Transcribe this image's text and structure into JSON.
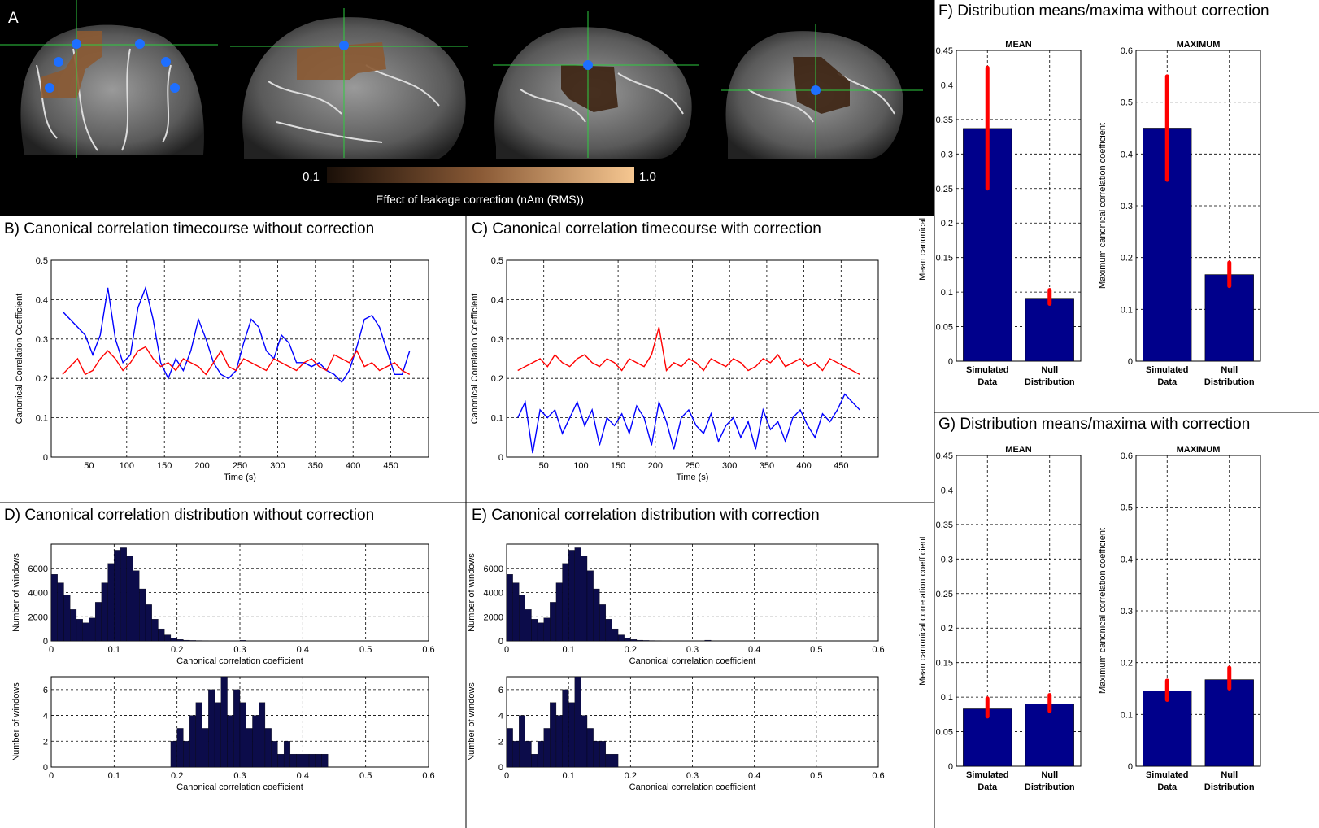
{
  "panelA": {
    "label": "A",
    "colorbar_min": "0.1",
    "colorbar_max": "1.0",
    "colorbar_label": "Effect of leakage correction (nAm (RMS))"
  },
  "colors": {
    "blue_line": "#0000ff",
    "red_line": "#ff0000",
    "bar_fill": "#00008b",
    "errorbar": "#ff0000",
    "hist_fill": "#0c0c4a"
  },
  "chart_data": [
    {
      "id": "B",
      "type": "line",
      "title": "B) Canonical correlation timecourse without correction",
      "xlabel": "Time (s)",
      "ylabel": "Canonical Correlation Coefficient",
      "xlim": [
        0,
        500
      ],
      "ylim": [
        0,
        0.5
      ],
      "xticks": [
        "50",
        "100",
        "150",
        "200",
        "250",
        "300",
        "350",
        "400",
        "450"
      ],
      "yticks": [
        "0",
        "0.1",
        "0.2",
        "0.3",
        "0.4",
        "0.5"
      ],
      "grid": true,
      "series": [
        {
          "color": "blue",
          "x": [
            15,
            25,
            35,
            45,
            55,
            65,
            75,
            85,
            95,
            105,
            115,
            125,
            135,
            145,
            155,
            165,
            175,
            185,
            195,
            205,
            215,
            225,
            235,
            245,
            255,
            265,
            275,
            285,
            295,
            305,
            315,
            325,
            335,
            345,
            355,
            365,
            375,
            385,
            395,
            405,
            415,
            425,
            435,
            445,
            455,
            465,
            475
          ],
          "y": [
            0.37,
            0.35,
            0.33,
            0.31,
            0.26,
            0.31,
            0.43,
            0.3,
            0.24,
            0.26,
            0.38,
            0.43,
            0.35,
            0.24,
            0.2,
            0.25,
            0.22,
            0.27,
            0.35,
            0.3,
            0.24,
            0.21,
            0.2,
            0.22,
            0.29,
            0.35,
            0.33,
            0.27,
            0.25,
            0.31,
            0.29,
            0.24,
            0.24,
            0.23,
            0.24,
            0.22,
            0.21,
            0.19,
            0.22,
            0.28,
            0.35,
            0.36,
            0.33,
            0.27,
            0.21,
            0.21,
            0.27
          ]
        },
        {
          "color": "red",
          "x": [
            15,
            25,
            35,
            45,
            55,
            65,
            75,
            85,
            95,
            105,
            115,
            125,
            135,
            145,
            155,
            165,
            175,
            185,
            195,
            205,
            215,
            225,
            235,
            245,
            255,
            265,
            275,
            285,
            295,
            305,
            315,
            325,
            335,
            345,
            355,
            365,
            375,
            385,
            395,
            405,
            415,
            425,
            435,
            445,
            455,
            465,
            475
          ],
          "y": [
            0.21,
            0.23,
            0.25,
            0.21,
            0.22,
            0.25,
            0.27,
            0.25,
            0.22,
            0.24,
            0.27,
            0.28,
            0.25,
            0.23,
            0.24,
            0.22,
            0.25,
            0.24,
            0.23,
            0.21,
            0.24,
            0.27,
            0.23,
            0.22,
            0.25,
            0.24,
            0.23,
            0.22,
            0.25,
            0.24,
            0.23,
            0.22,
            0.24,
            0.25,
            0.23,
            0.22,
            0.26,
            0.25,
            0.24,
            0.27,
            0.23,
            0.24,
            0.22,
            0.23,
            0.24,
            0.22,
            0.21
          ]
        }
      ]
    },
    {
      "id": "C",
      "type": "line",
      "title": "C) Canonical correlation timecourse with correction",
      "xlabel": "Time (s)",
      "ylabel": "Canonical Correlation Coefficient",
      "xlim": [
        0,
        500
      ],
      "ylim": [
        0,
        0.5
      ],
      "xticks": [
        "50",
        "100",
        "150",
        "200",
        "250",
        "300",
        "350",
        "400",
        "450"
      ],
      "yticks": [
        "0",
        "0.1",
        "0.2",
        "0.3",
        "0.4",
        "0.5"
      ],
      "grid": true,
      "series": [
        {
          "color": "red",
          "x": [
            15,
            25,
            35,
            45,
            55,
            65,
            75,
            85,
            95,
            105,
            115,
            125,
            135,
            145,
            155,
            165,
            175,
            185,
            195,
            205,
            215,
            225,
            235,
            245,
            255,
            265,
            275,
            285,
            295,
            305,
            315,
            325,
            335,
            345,
            355,
            365,
            375,
            385,
            395,
            405,
            415,
            425,
            435,
            445,
            455,
            465,
            475
          ],
          "y": [
            0.22,
            0.23,
            0.24,
            0.25,
            0.23,
            0.26,
            0.24,
            0.23,
            0.25,
            0.26,
            0.24,
            0.23,
            0.25,
            0.24,
            0.22,
            0.25,
            0.24,
            0.23,
            0.26,
            0.33,
            0.22,
            0.24,
            0.23,
            0.25,
            0.24,
            0.22,
            0.25,
            0.24,
            0.23,
            0.25,
            0.24,
            0.22,
            0.23,
            0.25,
            0.24,
            0.26,
            0.23,
            0.24,
            0.25,
            0.23,
            0.24,
            0.22,
            0.25,
            0.24,
            0.23,
            0.22,
            0.21
          ]
        },
        {
          "color": "blue",
          "x": [
            15,
            25,
            35,
            45,
            55,
            65,
            75,
            85,
            95,
            105,
            115,
            125,
            135,
            145,
            155,
            165,
            175,
            185,
            195,
            205,
            215,
            225,
            235,
            245,
            255,
            265,
            275,
            285,
            295,
            305,
            315,
            325,
            335,
            345,
            355,
            365,
            375,
            385,
            395,
            405,
            415,
            425,
            435,
            445,
            455,
            465,
            475
          ],
          "y": [
            0.1,
            0.14,
            0.01,
            0.12,
            0.1,
            0.12,
            0.06,
            0.1,
            0.14,
            0.08,
            0.12,
            0.03,
            0.1,
            0.08,
            0.11,
            0.06,
            0.13,
            0.1,
            0.03,
            0.14,
            0.09,
            0.02,
            0.1,
            0.12,
            0.08,
            0.06,
            0.11,
            0.04,
            0.08,
            0.1,
            0.05,
            0.09,
            0.02,
            0.12,
            0.07,
            0.09,
            0.04,
            0.1,
            0.12,
            0.08,
            0.05,
            0.11,
            0.09,
            0.12,
            0.16,
            0.14,
            0.12
          ]
        }
      ]
    },
    {
      "id": "D1",
      "type": "bar",
      "title": "D) Canonical correlation distribution without correction",
      "xlabel": "Canonical correlation coefficient",
      "ylabel": "Number of windows",
      "xlim": [
        0,
        0.6
      ],
      "ylim": [
        0,
        8000
      ],
      "xticks": [
        "0",
        "0.1",
        "0.2",
        "0.3",
        "0.4",
        "0.5",
        "0.6"
      ],
      "yticks": [
        "0",
        "2000",
        "4000",
        "6000"
      ],
      "x": [
        0,
        0.01,
        0.02,
        0.03,
        0.04,
        0.05,
        0.06,
        0.07,
        0.08,
        0.09,
        0.1,
        0.11,
        0.12,
        0.13,
        0.14,
        0.15,
        0.16,
        0.17,
        0.18,
        0.19,
        0.2,
        0.21,
        0.22,
        0.23,
        0.24,
        0.25,
        0.26,
        0.27,
        0.28,
        0.29,
        0.3
      ],
      "values": [
        5500,
        4800,
        3800,
        2600,
        1800,
        1500,
        1900,
        3200,
        4800,
        6400,
        7500,
        7700,
        7000,
        5800,
        4300,
        3000,
        1800,
        1000,
        500,
        250,
        120,
        60,
        40,
        30,
        25,
        20,
        15,
        12,
        10,
        8,
        50
      ]
    },
    {
      "id": "D2",
      "type": "bar",
      "xlabel": "Canonical correlation coefficient",
      "ylabel": "Number of windows",
      "xlim": [
        0,
        0.6
      ],
      "ylim": [
        0,
        7
      ],
      "xticks": [
        "0",
        "0.1",
        "0.2",
        "0.3",
        "0.4",
        "0.5",
        "0.6"
      ],
      "yticks": [
        "0",
        "2",
        "4",
        "6"
      ],
      "x": [
        0.19,
        0.2,
        0.21,
        0.22,
        0.23,
        0.24,
        0.25,
        0.26,
        0.27,
        0.28,
        0.29,
        0.3,
        0.31,
        0.32,
        0.33,
        0.34,
        0.35,
        0.36,
        0.37,
        0.38,
        0.39,
        0.4,
        0.41,
        0.42,
        0.43
      ],
      "values": [
        2,
        3,
        2,
        4,
        5,
        3,
        6,
        5,
        7,
        4,
        6,
        5,
        3,
        4,
        5,
        3,
        2,
        1,
        2,
        1,
        1,
        1,
        1,
        1,
        1
      ]
    },
    {
      "id": "E1",
      "type": "bar",
      "title": "E) Canonical correlation distribution with correction",
      "xlabel": "Canonical correlation coefficient",
      "ylabel": "Number of windows",
      "xlim": [
        0,
        0.6
      ],
      "ylim": [
        0,
        8000
      ],
      "xticks": [
        "0",
        "0.1",
        "0.2",
        "0.3",
        "0.4",
        "0.5",
        "0.6"
      ],
      "yticks": [
        "0",
        "2000",
        "4000",
        "6000"
      ],
      "x": [
        0,
        0.01,
        0.02,
        0.03,
        0.04,
        0.05,
        0.06,
        0.07,
        0.08,
        0.09,
        0.1,
        0.11,
        0.12,
        0.13,
        0.14,
        0.15,
        0.16,
        0.17,
        0.18,
        0.19,
        0.2,
        0.21,
        0.22,
        0.23,
        0.24,
        0.25,
        0.26,
        0.27,
        0.28,
        0.29,
        0.3,
        0.31,
        0.32
      ],
      "values": [
        5500,
        4800,
        3800,
        2600,
        1800,
        1500,
        1900,
        3200,
        4800,
        6400,
        7500,
        7700,
        7000,
        5800,
        4300,
        3000,
        1800,
        1000,
        500,
        250,
        120,
        60,
        40,
        30,
        25,
        20,
        15,
        12,
        10,
        8,
        6,
        5,
        60
      ]
    },
    {
      "id": "E2",
      "type": "bar",
      "xlabel": "Canonical correlation coefficient",
      "ylabel": "Number of windows",
      "xlim": [
        0,
        0.6
      ],
      "ylim": [
        0,
        7
      ],
      "xticks": [
        "0",
        "0.1",
        "0.2",
        "0.3",
        "0.4",
        "0.5",
        "0.6"
      ],
      "yticks": [
        "0",
        "2",
        "4",
        "6"
      ],
      "x": [
        0.0,
        0.01,
        0.02,
        0.03,
        0.04,
        0.05,
        0.06,
        0.07,
        0.08,
        0.09,
        0.1,
        0.11,
        0.12,
        0.13,
        0.14,
        0.15,
        0.16,
        0.17
      ],
      "values": [
        3,
        2,
        4,
        2,
        1,
        2,
        3,
        5,
        4,
        6,
        5,
        7,
        4,
        3,
        2,
        2,
        1,
        1
      ]
    },
    {
      "id": "F1",
      "type": "bar",
      "title": "F) Distribution means/maxima without correction",
      "subtitle": "MEAN",
      "ylabel": "Mean canonical correlation coefficient",
      "categories": [
        "Simulated Data",
        "Null Distribution"
      ],
      "values": [
        0.337,
        0.091
      ],
      "errors": [
        [
          0.25,
          0.425
        ],
        [
          0.083,
          0.103
        ]
      ],
      "ylim": [
        0,
        0.45
      ],
      "yticks": [
        "0",
        "0.05",
        "0.1",
        "0.15",
        "0.2",
        "0.25",
        "0.3",
        "0.35",
        "0.4",
        "0.45"
      ]
    },
    {
      "id": "F2",
      "type": "bar",
      "subtitle": "MAXIMUM",
      "ylabel": "Maximum canonical correlation coefficient",
      "categories": [
        "Simulated Data",
        "Null Distribution"
      ],
      "values": [
        0.45,
        0.167
      ],
      "errors": [
        [
          0.35,
          0.55
        ],
        [
          0.145,
          0.19
        ]
      ],
      "ylim": [
        0,
        0.6
      ],
      "yticks": [
        "0",
        "0.1",
        "0.2",
        "0.3",
        "0.4",
        "0.5",
        "0.6"
      ]
    },
    {
      "id": "G1",
      "type": "bar",
      "title": "G) Distribution means/maxima with correction",
      "subtitle": "MEAN",
      "ylabel": "Mean canonical correlation coefficient",
      "categories": [
        "Simulated Data",
        "Null Distribution"
      ],
      "values": [
        0.083,
        0.09
      ],
      "errors": [
        [
          0.072,
          0.098
        ],
        [
          0.08,
          0.103
        ]
      ],
      "ylim": [
        0,
        0.45
      ],
      "yticks": [
        "0",
        "0.05",
        "0.1",
        "0.15",
        "0.2",
        "0.25",
        "0.3",
        "0.35",
        "0.4",
        "0.45"
      ]
    },
    {
      "id": "G2",
      "type": "bar",
      "subtitle": "MAXIMUM",
      "ylabel": "Maximum canonical correlation coefficient",
      "categories": [
        "Simulated Data",
        "Null Distribution"
      ],
      "values": [
        0.145,
        0.167
      ],
      "errors": [
        [
          0.128,
          0.165
        ],
        [
          0.15,
          0.19
        ]
      ],
      "ylim": [
        0,
        0.6
      ],
      "yticks": [
        "0",
        "0.1",
        "0.2",
        "0.3",
        "0.4",
        "0.5",
        "0.6"
      ]
    }
  ]
}
